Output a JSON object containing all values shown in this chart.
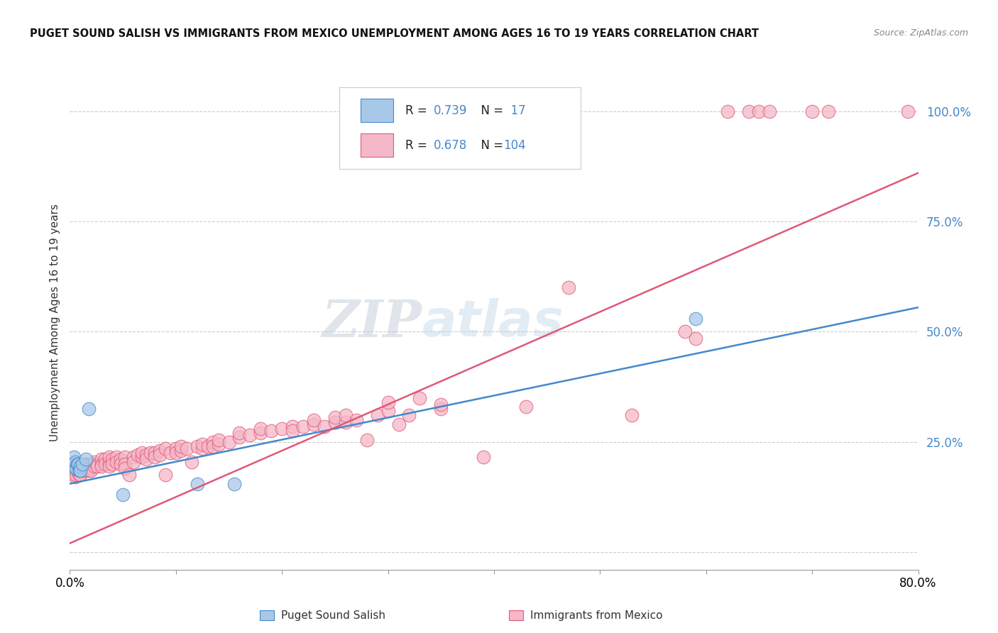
{
  "title": "PUGET SOUND SALISH VS IMMIGRANTS FROM MEXICO UNEMPLOYMENT AMONG AGES 16 TO 19 YEARS CORRELATION CHART",
  "source": "Source: ZipAtlas.com",
  "ylabel": "Unemployment Among Ages 16 to 19 years",
  "xlim": [
    0.0,
    0.8
  ],
  "ylim": [
    -0.04,
    1.08
  ],
  "yticks": [
    0.0,
    0.25,
    0.5,
    0.75,
    1.0
  ],
  "ytick_labels": [
    "",
    "25.0%",
    "50.0%",
    "75.0%",
    "100.0%"
  ],
  "xticks": [
    0.0,
    0.1,
    0.2,
    0.3,
    0.4,
    0.5,
    0.6,
    0.7,
    0.8
  ],
  "xtick_labels": [
    "0.0%",
    "",
    "",
    "",
    "",
    "",
    "",
    "",
    "80.0%"
  ],
  "blue_color": "#a8c8e8",
  "pink_color": "#f4b8c8",
  "line_blue": "#4488cc",
  "line_pink": "#e05878",
  "watermark_zip": "ZIP",
  "watermark_atlas": "atlas",
  "blue_scatter": [
    [
      0.003,
      0.195
    ],
    [
      0.004,
      0.215
    ],
    [
      0.004,
      0.2
    ],
    [
      0.005,
      0.195
    ],
    [
      0.005,
      0.205
    ],
    [
      0.006,
      0.19
    ],
    [
      0.007,
      0.2
    ],
    [
      0.008,
      0.2
    ],
    [
      0.009,
      0.185
    ],
    [
      0.01,
      0.195
    ],
    [
      0.01,
      0.185
    ],
    [
      0.012,
      0.2
    ],
    [
      0.015,
      0.21
    ],
    [
      0.018,
      0.325
    ],
    [
      0.05,
      0.13
    ],
    [
      0.12,
      0.155
    ],
    [
      0.155,
      0.155
    ],
    [
      0.59,
      0.53
    ]
  ],
  "pink_scatter": [
    [
      0.003,
      0.185
    ],
    [
      0.004,
      0.195
    ],
    [
      0.004,
      0.2
    ],
    [
      0.004,
      0.175
    ],
    [
      0.005,
      0.19
    ],
    [
      0.005,
      0.2
    ],
    [
      0.005,
      0.185
    ],
    [
      0.005,
      0.17
    ],
    [
      0.006,
      0.195
    ],
    [
      0.006,
      0.185
    ],
    [
      0.006,
      0.175
    ],
    [
      0.007,
      0.195
    ],
    [
      0.007,
      0.185
    ],
    [
      0.007,
      0.19
    ],
    [
      0.008,
      0.195
    ],
    [
      0.008,
      0.185
    ],
    [
      0.008,
      0.2
    ],
    [
      0.009,
      0.185
    ],
    [
      0.009,
      0.195
    ],
    [
      0.009,
      0.175
    ],
    [
      0.01,
      0.19
    ],
    [
      0.01,
      0.185
    ],
    [
      0.01,
      0.195
    ],
    [
      0.01,
      0.175
    ],
    [
      0.012,
      0.195
    ],
    [
      0.012,
      0.185
    ],
    [
      0.012,
      0.19
    ],
    [
      0.015,
      0.2
    ],
    [
      0.015,
      0.19
    ],
    [
      0.015,
      0.185
    ],
    [
      0.018,
      0.195
    ],
    [
      0.018,
      0.185
    ],
    [
      0.02,
      0.2
    ],
    [
      0.02,
      0.19
    ],
    [
      0.02,
      0.185
    ],
    [
      0.023,
      0.195
    ],
    [
      0.023,
      0.205
    ],
    [
      0.026,
      0.2
    ],
    [
      0.026,
      0.195
    ],
    [
      0.03,
      0.21
    ],
    [
      0.03,
      0.2
    ],
    [
      0.03,
      0.195
    ],
    [
      0.033,
      0.21
    ],
    [
      0.033,
      0.2
    ],
    [
      0.037,
      0.205
    ],
    [
      0.037,
      0.215
    ],
    [
      0.037,
      0.195
    ],
    [
      0.04,
      0.21
    ],
    [
      0.04,
      0.2
    ],
    [
      0.044,
      0.215
    ],
    [
      0.044,
      0.205
    ],
    [
      0.048,
      0.21
    ],
    [
      0.048,
      0.2
    ],
    [
      0.052,
      0.215
    ],
    [
      0.052,
      0.2
    ],
    [
      0.052,
      0.19
    ],
    [
      0.056,
      0.175
    ],
    [
      0.06,
      0.215
    ],
    [
      0.06,
      0.205
    ],
    [
      0.064,
      0.22
    ],
    [
      0.068,
      0.215
    ],
    [
      0.068,
      0.225
    ],
    [
      0.072,
      0.22
    ],
    [
      0.072,
      0.21
    ],
    [
      0.076,
      0.225
    ],
    [
      0.08,
      0.225
    ],
    [
      0.08,
      0.215
    ],
    [
      0.085,
      0.23
    ],
    [
      0.085,
      0.22
    ],
    [
      0.09,
      0.175
    ],
    [
      0.09,
      0.235
    ],
    [
      0.095,
      0.225
    ],
    [
      0.1,
      0.235
    ],
    [
      0.1,
      0.225
    ],
    [
      0.105,
      0.23
    ],
    [
      0.105,
      0.24
    ],
    [
      0.11,
      0.235
    ],
    [
      0.115,
      0.205
    ],
    [
      0.12,
      0.24
    ],
    [
      0.125,
      0.235
    ],
    [
      0.125,
      0.245
    ],
    [
      0.13,
      0.24
    ],
    [
      0.135,
      0.25
    ],
    [
      0.135,
      0.24
    ],
    [
      0.14,
      0.245
    ],
    [
      0.14,
      0.255
    ],
    [
      0.15,
      0.25
    ],
    [
      0.16,
      0.26
    ],
    [
      0.16,
      0.27
    ],
    [
      0.17,
      0.265
    ],
    [
      0.18,
      0.27
    ],
    [
      0.18,
      0.28
    ],
    [
      0.19,
      0.275
    ],
    [
      0.2,
      0.28
    ],
    [
      0.21,
      0.285
    ],
    [
      0.21,
      0.275
    ],
    [
      0.22,
      0.285
    ],
    [
      0.23,
      0.29
    ],
    [
      0.23,
      0.3
    ],
    [
      0.24,
      0.285
    ],
    [
      0.25,
      0.295
    ],
    [
      0.25,
      0.305
    ],
    [
      0.26,
      0.295
    ],
    [
      0.26,
      0.31
    ],
    [
      0.27,
      0.3
    ],
    [
      0.28,
      0.255
    ],
    [
      0.29,
      0.31
    ],
    [
      0.3,
      0.32
    ],
    [
      0.3,
      0.34
    ],
    [
      0.31,
      0.29
    ],
    [
      0.32,
      0.31
    ],
    [
      0.33,
      0.35
    ],
    [
      0.35,
      0.325
    ],
    [
      0.35,
      0.335
    ],
    [
      0.39,
      0.215
    ],
    [
      0.43,
      0.33
    ],
    [
      0.47,
      0.6
    ],
    [
      0.53,
      0.31
    ],
    [
      0.58,
      0.5
    ],
    [
      0.59,
      0.485
    ],
    [
      0.62,
      1.0
    ],
    [
      0.64,
      1.0
    ],
    [
      0.65,
      1.0
    ],
    [
      0.66,
      1.0
    ],
    [
      0.7,
      1.0
    ],
    [
      0.715,
      1.0
    ],
    [
      0.79,
      1.0
    ]
  ],
  "blue_line_x": [
    0.0,
    0.8
  ],
  "blue_line_y": [
    0.155,
    0.555
  ],
  "pink_line_x": [
    0.0,
    0.8
  ],
  "pink_line_y": [
    0.02,
    0.86
  ]
}
